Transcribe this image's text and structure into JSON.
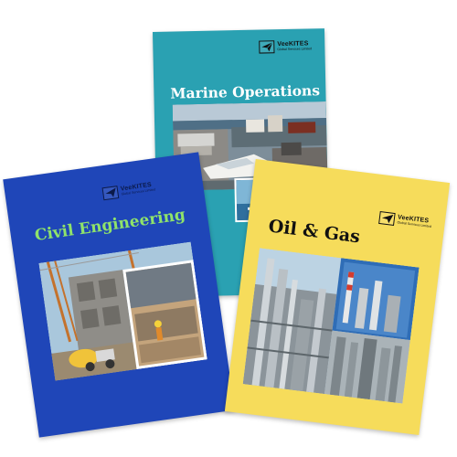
{
  "brochures": {
    "marine": {
      "title": "Marine Operations",
      "logo_name": "VeeKITES",
      "logo_sub": "Global Services Limited",
      "color": "#2aa1b2"
    },
    "civil": {
      "title": "Civil Engineering",
      "logo_name": "VeeKITES",
      "logo_sub": "Global Services Limited",
      "color": "#1f46b8",
      "title_color": "#8fe36a"
    },
    "oil": {
      "title": "Oil & Gas",
      "logo_name": "VeeKITES",
      "logo_sub": "Global Services Limited",
      "color": "#f6dc5b"
    }
  },
  "icons": {
    "logo": "paper-plane-kite-icon"
  }
}
